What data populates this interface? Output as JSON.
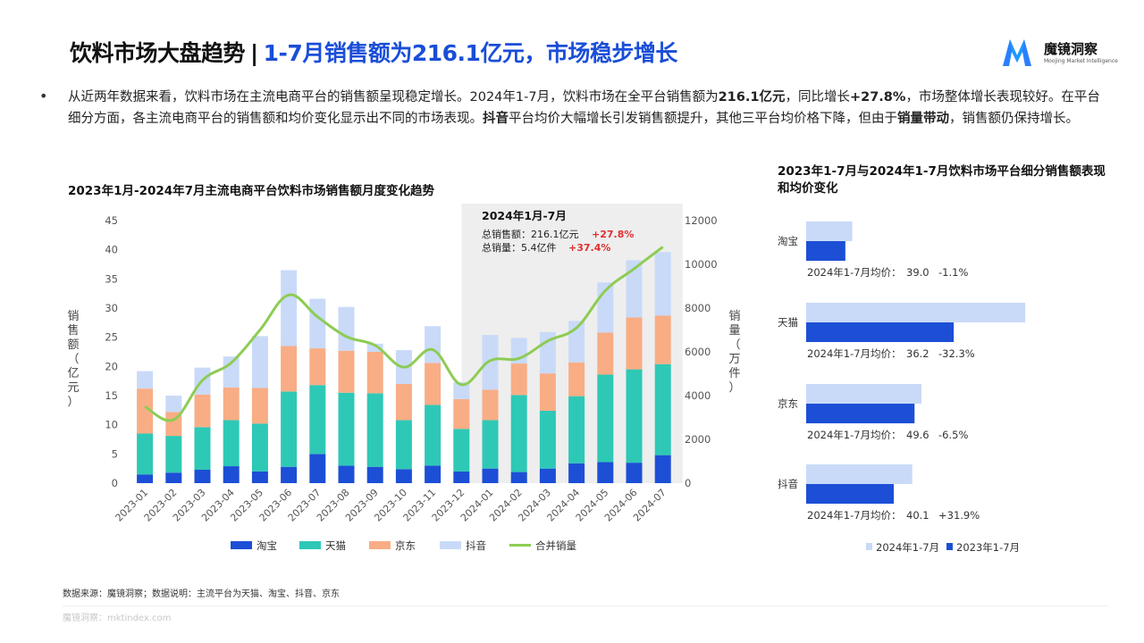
{
  "header": {
    "title_main": "饮料市场大盘趋势",
    "title_sep": "|",
    "title_highlight": "1-7月销售额为216.1亿元，市场稳步增长",
    "logo_text": "魔镜洞察",
    "logo_sub": "Moojing Market Intelligence"
  },
  "summary": {
    "bullet": "•",
    "p1": "从近两年数据来看，饮料市场在主流电商平台的销售额呈现稳定增长。2024年1-7月，饮料市场在全平台销售额为",
    "b1": "216.1亿元",
    "p2": "，同比增长",
    "b2": "+27.8%",
    "p3": "，市场整体增长表现较好。在平台细分方面，各主流电商平台的销售额和均价变化显示出不同的市场表现。",
    "b3": "抖音",
    "p4": "平台均价大幅增长引发销售额提升，其他三平台均价格下降，但由于",
    "b4": "销量带动",
    "p5": "，销售额仍保持增长。"
  },
  "left_chart_title": "2023年1月-2024年7月主流电商平台饮料市场销售额月度变化趋势",
  "right_chart_title": "2023年1-7月与2024年1-7月饮料市场平台细分销售额表现和均价变化",
  "callout": {
    "title": "2024年1月-7月",
    "line1_label": "总销售额：216.1亿元",
    "line1_change": "+27.8%",
    "line2_label": "总销量：5.4亿件",
    "line2_change": "+37.4%"
  },
  "chart_data": [
    {
      "type": "bar",
      "stacked": true,
      "title": "2023年1月-2024年7月主流电商平台饮料市场销售额月度变化趋势",
      "categories": [
        "2023-01",
        "2023-02",
        "2023-03",
        "2023-04",
        "2023-05",
        "2023-06",
        "2023-07",
        "2023-08",
        "2023-09",
        "2023-10",
        "2023-11",
        "2023-12",
        "2024-01",
        "2024-02",
        "2024-03",
        "2024-04",
        "2024-05",
        "2024-06",
        "2024-07"
      ],
      "ylabel": "销售额（亿元）",
      "y2label": "销量（万件）",
      "ylim": [
        0,
        45
      ],
      "yticks": [
        0,
        5,
        10,
        15,
        20,
        25,
        30,
        35,
        40,
        45
      ],
      "y2lim": [
        0,
        12000
      ],
      "y2ticks": [
        0,
        2000,
        4000,
        6000,
        8000,
        10000,
        12000
      ],
      "series": [
        {
          "name": "淘宝",
          "color": "#1c4fd6",
          "values": [
            1.5,
            1.8,
            2.3,
            2.9,
            2.0,
            2.8,
            5.0,
            3.0,
            2.8,
            2.4,
            3.0,
            2.0,
            2.5,
            1.9,
            2.5,
            3.4,
            3.6,
            3.5,
            4.8
          ]
        },
        {
          "name": "天猫",
          "color": "#2ec8b6",
          "values": [
            7.0,
            6.3,
            7.3,
            7.9,
            8.2,
            12.9,
            11.8,
            12.5,
            12.6,
            8.4,
            10.4,
            7.3,
            8.3,
            13.2,
            9.9,
            11.5,
            15.0,
            16.0,
            15.6
          ]
        },
        {
          "name": "京东",
          "color": "#f8ad85",
          "values": [
            7.7,
            4.1,
            5.6,
            5.6,
            6.1,
            7.8,
            6.3,
            7.2,
            7.1,
            6.2,
            7.2,
            5.1,
            5.2,
            5.4,
            6.4,
            5.8,
            7.2,
            8.9,
            8.3
          ]
        },
        {
          "name": "抖音",
          "color": "#c9daf8",
          "values": [
            3.0,
            2.8,
            4.6,
            5.3,
            8.9,
            13.0,
            8.5,
            7.5,
            1.4,
            5.8,
            6.3,
            2.9,
            9.4,
            4.4,
            7.1,
            7.1,
            8.6,
            9.8,
            10.9
          ]
        }
      ],
      "line": {
        "name": "合并销量",
        "color": "#8dcc54",
        "axis": "secondary",
        "values": [
          3500,
          2900,
          4700,
          5500,
          7000,
          8600,
          7600,
          6700,
          6300,
          5300,
          6100,
          4500,
          5600,
          5700,
          6500,
          7100,
          8800,
          9800,
          10800
        ]
      },
      "highlight_range": [
        "2024-01",
        "2024-07"
      ],
      "legend": "bottom"
    },
    {
      "type": "bar",
      "orientation": "horizontal",
      "title": "2023年1-7月与2024年1-7月饮料市场平台细分销售额表现和均价变化",
      "categories": [
        "淘宝",
        "天猫",
        "京东",
        "抖音"
      ],
      "series": [
        {
          "name": "2024年1-7月",
          "color": "#c9daf8",
          "values": [
            20,
            95,
            50,
            46
          ]
        },
        {
          "name": "2023年1-7月",
          "color": "#1c4fd6",
          "values": [
            17,
            64,
            47,
            38
          ]
        }
      ],
      "annotations": [
        {
          "label": "2024年1-7月均价：",
          "price": "39.0",
          "change": "-1.1%"
        },
        {
          "label": "2024年1-7月均价：",
          "price": "36.2",
          "change": "-32.3%"
        },
        {
          "label": "2024年1-7月均价：",
          "price": "49.6",
          "change": "-6.5%"
        },
        {
          "label": "2024年1-7月均价：",
          "price": "40.1",
          "change": "+31.9%"
        }
      ],
      "legend": "bottom"
    }
  ],
  "source_note": "数据来源：魔镜洞察；数据说明：主流平台为天猫、淘宝、抖音、京东",
  "footer": "魔镜洞察：mktindex.com"
}
